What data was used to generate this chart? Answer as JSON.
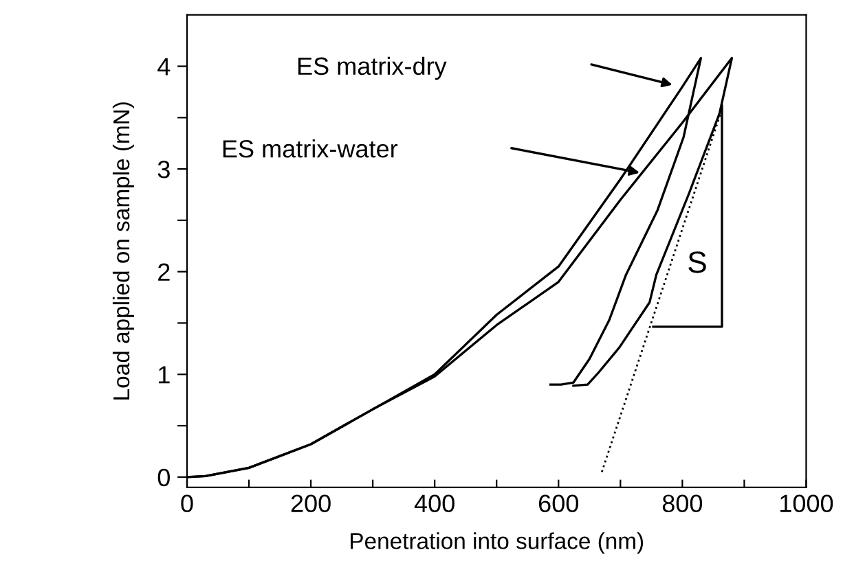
{
  "chart_data": {
    "type": "line",
    "xlabel": "Penetration into surface (nm)",
    "ylabel": "Load applied on sample (mN)",
    "xlim": [
      0,
      1000
    ],
    "ylim": [
      -0.1,
      4.5
    ],
    "xticks": [
      0,
      {
        "value": 100,
        "label": null
      },
      200,
      {
        "value": 300,
        "label": null
      },
      400,
      {
        "value": 500,
        "label": null
      },
      600,
      {
        "value": 700,
        "label": null
      },
      800,
      {
        "value": 900,
        "label": null
      },
      1000
    ],
    "yticks": [
      0,
      {
        "value": 0.5,
        "label": null
      },
      1,
      {
        "value": 1.5,
        "label": null
      },
      2,
      {
        "value": 2.5,
        "label": null
      },
      3,
      {
        "value": 3.5,
        "label": null
      },
      4
    ],
    "grid": false,
    "legend": false,
    "marker": "none",
    "line_style": "solid",
    "series": [
      {
        "color": "#000000",
        "x": [
          0,
          30,
          100,
          200,
          300,
          400,
          500,
          600,
          700,
          800,
          830,
          802,
          760,
          709,
          682,
          650,
          624,
          604,
          587
        ],
        "values": [
          0,
          0.01,
          0.09,
          0.32,
          0.66,
          1.0,
          1.58,
          2.05,
          2.9,
          3.8,
          4.08,
          3.31,
          2.6,
          1.97,
          1.53,
          1.15,
          0.92,
          0.9,
          0.9
        ]
      },
      {
        "color": "#000000",
        "x": [
          0,
          30,
          100,
          200,
          300,
          400,
          500,
          600,
          700,
          800,
          880,
          860,
          810,
          758,
          747,
          698,
          665,
          647,
          624
        ],
        "values": [
          0,
          0.01,
          0.09,
          0.32,
          0.66,
          0.98,
          1.48,
          1.9,
          2.7,
          3.45,
          4.08,
          3.54,
          2.75,
          1.97,
          1.7,
          1.26,
          1.02,
          0.9,
          0.89
        ]
      },
      {
        "color": "#000000",
        "line_style": "dotted",
        "x": [
          670,
          865
        ],
        "values": [
          0.05,
          3.6
        ]
      }
    ],
    "annotations": [
      "ES matrix-dry",
      "ES matrix-water",
      "S"
    ]
  }
}
